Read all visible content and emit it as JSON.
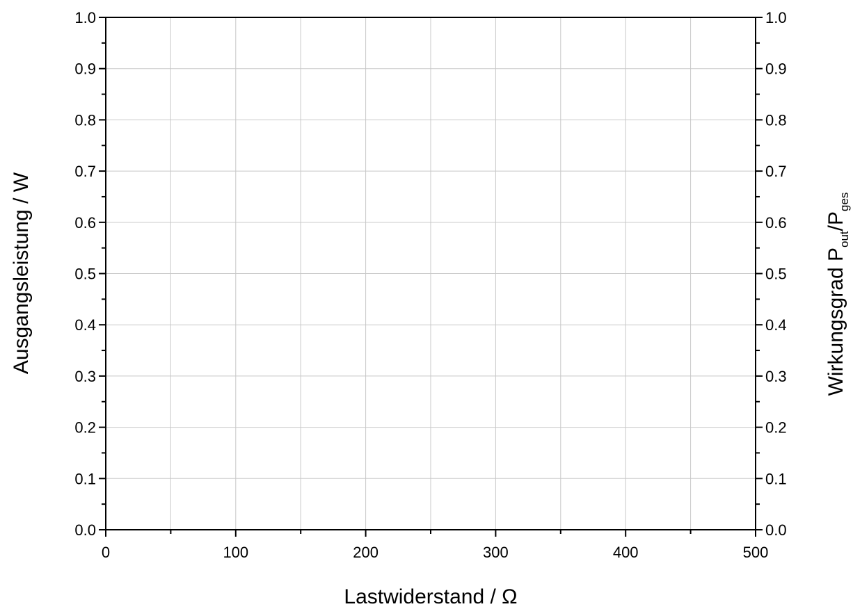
{
  "chart_data": {
    "type": "line",
    "title": "",
    "xlabel": "Lastwiderstand / Ω",
    "ylabel": "Ausgangsleistung / W",
    "y2label": {
      "prefix": "Wirkungsgrad P",
      "sub1": "out",
      "mid": "/P",
      "sub2": "ges"
    },
    "xlim": [
      0,
      500
    ],
    "ylim": [
      0,
      1.0
    ],
    "y2lim": [
      0,
      1.0
    ],
    "x_ticks": [
      "0",
      "100",
      "200",
      "300",
      "400",
      "500"
    ],
    "x_tick_values": [
      0,
      100,
      200,
      300,
      400,
      500
    ],
    "y_ticks": [
      "0.0",
      "0.1",
      "0.2",
      "0.3",
      "0.4",
      "0.5",
      "0.6",
      "0.7",
      "0.8",
      "0.9",
      "1.0"
    ],
    "y_tick_values": [
      0,
      0.1,
      0.2,
      0.3,
      0.4,
      0.5,
      0.6,
      0.7,
      0.8,
      0.9,
      1.0
    ],
    "y2_ticks": [
      "0.0",
      "0.1",
      "0.2",
      "0.3",
      "0.4",
      "0.5",
      "0.6",
      "0.7",
      "0.8",
      "0.9",
      "1.0"
    ],
    "x_minor_step": 50,
    "y_minor_step": 0.05,
    "grid": true,
    "series": []
  }
}
